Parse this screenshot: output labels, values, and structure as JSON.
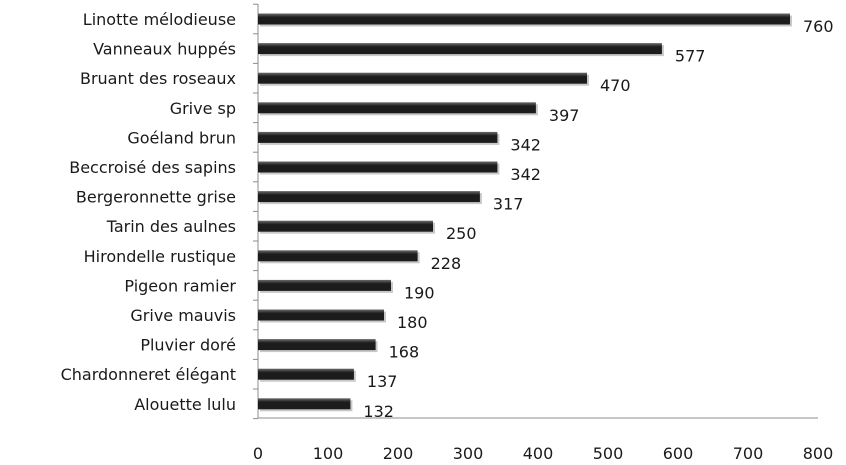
{
  "chart_data": {
    "type": "bar",
    "orientation": "horizontal",
    "categories": [
      "Linotte mélodieuse",
      "Vanneaux huppés",
      "Bruant des roseaux",
      "Grive sp",
      "Goéland brun",
      "Beccroisé des sapins",
      "Bergeronnette grise",
      "Tarin des aulnes",
      "Hirondelle rustique",
      "Pigeon ramier",
      "Grive mauvis",
      "Pluvier doré",
      "Chardonneret élégant",
      "Alouette lulu"
    ],
    "values": [
      760,
      577,
      470,
      397,
      342,
      342,
      317,
      250,
      228,
      190,
      180,
      168,
      137,
      132
    ],
    "data_labels": [
      "760",
      "577",
      "470",
      "397",
      "342",
      "342",
      "317",
      "250",
      "228",
      "190",
      "180",
      "168",
      "137",
      "132"
    ],
    "xlim": [
      0,
      800
    ],
    "x_ticks": [
      0,
      100,
      200,
      300,
      400,
      500,
      600,
      700,
      800
    ],
    "x_tick_labels": [
      "0",
      "100",
      "200",
      "300",
      "400",
      "500",
      "600",
      "700",
      "800"
    ],
    "title": "",
    "xlabel": "",
    "ylabel": "",
    "grid": false,
    "legend": "none",
    "bar_color": "#1c1c1c",
    "bar_highlight_color": "#6a6a6a",
    "axis_color": "#8c8c8c"
  }
}
